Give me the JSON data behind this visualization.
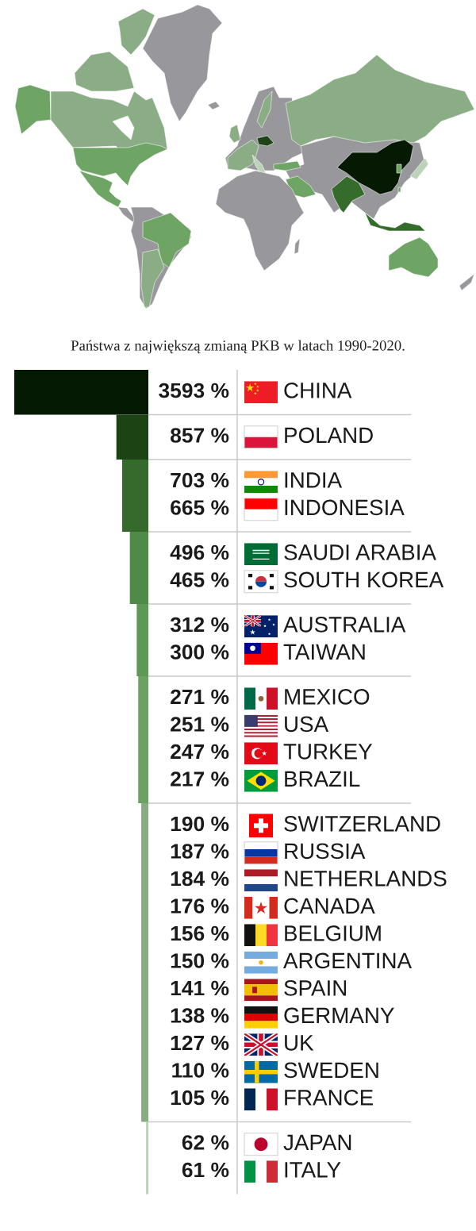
{
  "chart_data": {
    "type": "other",
    "title": "Państwa z największą zmianą PKB w latach 1990-2020.",
    "categories": [
      "CHINA",
      "POLAND",
      "INDIA",
      "INDONESIA",
      "SAUDI ARABIA",
      "SOUTH KOREA",
      "AUSTRALIA",
      "TAIWAN",
      "MEXICO",
      "USA",
      "TURKEY",
      "BRAZIL",
      "SWITZERLAND",
      "RUSSIA",
      "NETHERLANDS",
      "CANADA",
      "BELGIUM",
      "ARGENTINA",
      "SPAIN",
      "GERMANY",
      "UK",
      "SWEDEN",
      "FRANCE",
      "JAPAN",
      "ITALY"
    ],
    "values": [
      3593,
      857,
      703,
      665,
      496,
      465,
      312,
      300,
      271,
      251,
      247,
      217,
      190,
      187,
      184,
      176,
      156,
      150,
      141,
      138,
      127,
      110,
      105,
      62,
      61
    ],
    "value_labels": [
      "3593 %",
      "857 %",
      "703 %",
      "665 %",
      "496 %",
      "465 %",
      "312 %",
      "300 %",
      "271 %",
      "251 %",
      "247 %",
      "217 %",
      "190 %",
      "187 %",
      "184 %",
      "176 %",
      "156 %",
      "150 %",
      "141 %",
      "138 %",
      "127 %",
      "110 %",
      "105 %",
      "62 %",
      "61 %"
    ],
    "colors": [
      "#041a02",
      "#1b4314",
      "#356a2c",
      "#356a2c",
      "#4f8a47",
      "#4f8a47",
      "#5e9857",
      "#5e9857",
      "#6ca162",
      "#6ca162",
      "#6ca162",
      "#6ca162",
      "#89ab84",
      "#89ab84",
      "#89ab84",
      "#89ab84",
      "#89ab84",
      "#89ab84",
      "#89ab84",
      "#89ab84",
      "#89ab84",
      "#89ab84",
      "#89ab84",
      "#bdd3b9",
      "#bdd3b9"
    ]
  }
}
